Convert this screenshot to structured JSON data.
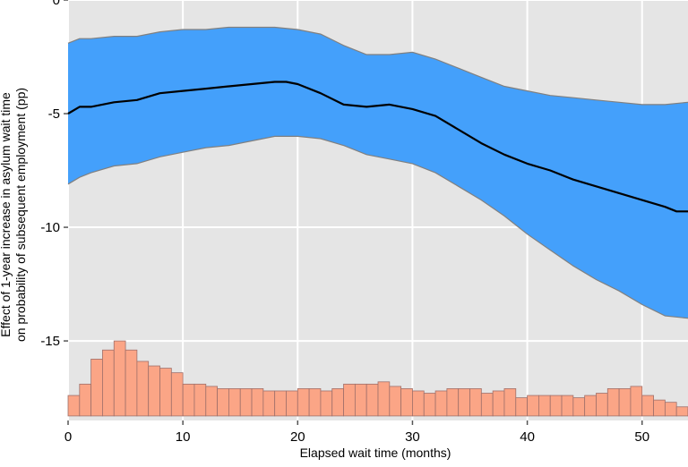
{
  "chart_data": {
    "type": "area",
    "title": "",
    "xlabel": "Elapsed wait time (months)",
    "ylabel_lines": [
      "Effect of 1-year increase in asylum wait time",
      "on probability of subsequent employment (pp)"
    ],
    "xlim": [
      0,
      54
    ],
    "ylim": [
      -18.5,
      0
    ],
    "grid": true,
    "x_ticks": [
      0,
      10,
      20,
      30,
      40,
      50
    ],
    "y_ticks": [
      0,
      -5,
      -10,
      -15
    ],
    "x_tick_labels": [
      "0",
      "10",
      "20",
      "30",
      "40",
      "50"
    ],
    "y_tick_labels": [
      "0",
      "-5",
      "-10",
      "-15"
    ],
    "colors": {
      "panel_bg": "#e5e5e5",
      "grid": "#ffffff",
      "ribbon_fill": "#44a0fb",
      "ribbon_edge": "#808080",
      "line": "#000000",
      "histogram_fill": "#fba586",
      "histogram_edge": "#a0706a"
    },
    "series": [
      {
        "kind": "line",
        "x": [
          0,
          1,
          2,
          4,
          6,
          8,
          10,
          12,
          14,
          16,
          18,
          19,
          20,
          22,
          24,
          26,
          28,
          30,
          32,
          34,
          36,
          38,
          40,
          42,
          44,
          46,
          48,
          50,
          52,
          53,
          54
        ],
        "values": [
          -5.0,
          -4.7,
          -4.7,
          -4.5,
          -4.4,
          -4.1,
          -4.0,
          -3.9,
          -3.8,
          -3.7,
          -3.6,
          -3.6,
          -3.7,
          -4.1,
          -4.6,
          -4.7,
          -4.6,
          -4.8,
          -5.1,
          -5.7,
          -6.3,
          -6.8,
          -7.2,
          -7.5,
          -7.9,
          -8.2,
          -8.5,
          -8.8,
          -9.1,
          -9.3,
          -9.3
        ]
      },
      {
        "kind": "ribbon_upper",
        "x": [
          0,
          1,
          2,
          4,
          6,
          8,
          10,
          12,
          14,
          16,
          18,
          20,
          22,
          24,
          26,
          28,
          30,
          32,
          34,
          36,
          38,
          40,
          42,
          44,
          46,
          48,
          50,
          52,
          54
        ],
        "values": [
          -1.9,
          -1.7,
          -1.7,
          -1.6,
          -1.6,
          -1.4,
          -1.3,
          -1.3,
          -1.2,
          -1.2,
          -1.2,
          -1.3,
          -1.5,
          -2.0,
          -2.4,
          -2.4,
          -2.3,
          -2.6,
          -3.0,
          -3.4,
          -3.8,
          -4.0,
          -4.2,
          -4.3,
          -4.4,
          -4.5,
          -4.6,
          -4.6,
          -4.5
        ]
      },
      {
        "kind": "ribbon_lower",
        "x": [
          0,
          1,
          2,
          4,
          6,
          8,
          10,
          12,
          14,
          16,
          18,
          20,
          22,
          24,
          26,
          28,
          30,
          32,
          34,
          36,
          38,
          40,
          42,
          44,
          46,
          48,
          50,
          52,
          54
        ],
        "values": [
          -8.1,
          -7.8,
          -7.6,
          -7.3,
          -7.2,
          -6.9,
          -6.7,
          -6.5,
          -6.4,
          -6.2,
          -6.0,
          -6.0,
          -6.1,
          -6.4,
          -6.8,
          -7.0,
          -7.2,
          -7.6,
          -8.2,
          -8.8,
          -9.5,
          -10.3,
          -11.0,
          -11.7,
          -12.3,
          -12.8,
          -13.4,
          -13.9,
          -14.0
        ]
      }
    ],
    "histogram": {
      "baseline": -18.3,
      "bin_width": 1,
      "start": 0,
      "tops": [
        -17.4,
        -16.9,
        -15.8,
        -15.4,
        -15.0,
        -15.4,
        -15.9,
        -16.1,
        -16.2,
        -16.4,
        -16.9,
        -16.9,
        -17.0,
        -17.1,
        -17.1,
        -17.1,
        -17.1,
        -17.2,
        -17.2,
        -17.2,
        -17.1,
        -17.1,
        -17.2,
        -17.1,
        -16.9,
        -16.9,
        -16.9,
        -16.8,
        -17.0,
        -17.1,
        -17.2,
        -17.3,
        -17.2,
        -17.1,
        -17.1,
        -17.1,
        -17.3,
        -17.2,
        -17.1,
        -17.5,
        -17.4,
        -17.4,
        -17.4,
        -17.4,
        -17.5,
        -17.4,
        -17.3,
        -17.1,
        -17.1,
        -17.0,
        -17.4,
        -17.6,
        -17.7,
        -17.9,
        -18.0
      ]
    }
  }
}
